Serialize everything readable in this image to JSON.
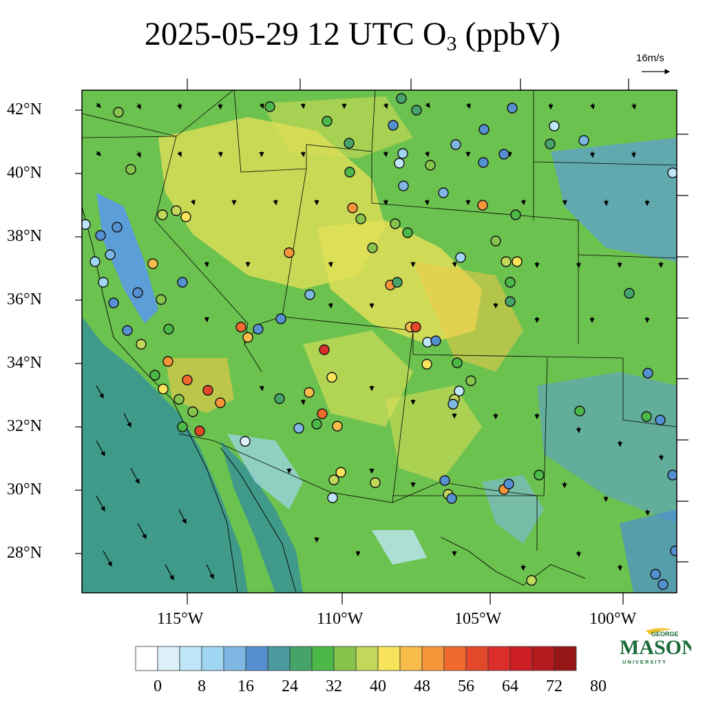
{
  "title": {
    "main": "2025-05-29 12 UTC O",
    "subscript": "3",
    "units": " (ppbV)"
  },
  "wind_reference": {
    "label": "16m/s"
  },
  "latitude_labels": [
    "42°N",
    "40°N",
    "38°N",
    "36°N",
    "34°N",
    "32°N",
    "30°N",
    "28°N"
  ],
  "longitude_labels": [
    "115°W",
    "110°W",
    "105°W",
    "100°W"
  ],
  "colorbar": {
    "tick_labels": [
      "0",
      "8",
      "16",
      "24",
      "32",
      "40",
      "48",
      "56",
      "64",
      "72",
      "80"
    ],
    "colors": [
      "#ffffff",
      "#dcf0fa",
      "#bee6f8",
      "#a0d6f2",
      "#7eb8e2",
      "#5591d0",
      "#4a9a9e",
      "#46a46a",
      "#4cb848",
      "#86c44e",
      "#c2d85a",
      "#f8e45a",
      "#f8bc4a",
      "#f6963a",
      "#f06a2e",
      "#e4482a",
      "#dc2e2a",
      "#cc1e24",
      "#b41a1e",
      "#961616"
    ]
  },
  "logo": {
    "line1": "GEORGE",
    "line2": "MASON",
    "line3": "UNIVERSITY"
  },
  "map_colors": {
    "background": "#6cc24e",
    "ocean": "#3f9a8a",
    "highland": "#e0df58",
    "valley": "#5c9ed8"
  }
}
